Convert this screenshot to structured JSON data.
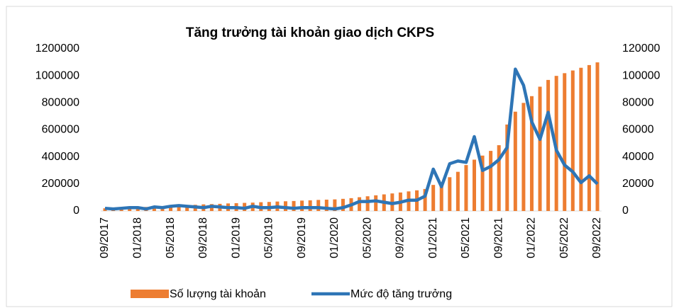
{
  "chart_data": {
    "type": "bar-line",
    "title": "Tăng trưởng tài khoản giao dịch CKPS",
    "categories": [
      "09/2017",
      null,
      null,
      null,
      "01/2018",
      null,
      null,
      null,
      "05/2018",
      null,
      null,
      null,
      "09/2018",
      null,
      null,
      null,
      "01/2019",
      null,
      null,
      null,
      "05/2019",
      null,
      null,
      null,
      "09/2019",
      null,
      null,
      null,
      "01/2020",
      null,
      null,
      null,
      "05/2020",
      null,
      null,
      null,
      "09/2020",
      null,
      null,
      null,
      "01/2021",
      null,
      null,
      null,
      "05/2021",
      null,
      null,
      null,
      "09/2021",
      null,
      null,
      null,
      "01/2022",
      null,
      null,
      null,
      "05/2022",
      null,
      null,
      null,
      "09/2022"
    ],
    "series": [
      {
        "name": "Số lượng tài khoản",
        "type": "bar",
        "color": "#ED7D31",
        "values": [
          20000,
          21000,
          23000,
          25000,
          28000,
          30000,
          32000,
          35000,
          38000,
          41000,
          44000,
          46000,
          49000,
          51000,
          53000,
          56000,
          58000,
          60000,
          62000,
          65000,
          67000,
          70000,
          72000,
          74000,
          77000,
          79000,
          82000,
          84000,
          86000,
          90000,
          95000,
          102000,
          109000,
          116000,
          123000,
          130000,
          137000,
          145000,
          153000,
          163000,
          193000,
          213000,
          250000,
          290000,
          340000,
          380000,
          410000,
          445000,
          487000,
          640000,
          735000,
          800000,
          850000,
          920000,
          970000,
          1000000,
          1020000,
          1040000,
          1060000,
          1080000,
          1100000
        ]
      },
      {
        "name": "Mức độ tăng trưởng",
        "type": "line",
        "axis": "y2",
        "color": "#2E75B6",
        "values": [
          2000,
          1500,
          2000,
          2500,
          2500,
          1500,
          3000,
          2500,
          3500,
          4000,
          3500,
          3000,
          2500,
          3500,
          3000,
          2500,
          2500,
          2000,
          3500,
          2500,
          2500,
          3000,
          2500,
          2000,
          2500,
          2500,
          2500,
          2000,
          1500,
          2500,
          4500,
          7000,
          7000,
          7500,
          6500,
          5500,
          6500,
          8000,
          8000,
          11000,
          31000,
          18000,
          35000,
          37000,
          36000,
          55000,
          30000,
          33000,
          38000,
          47000,
          105000,
          93000,
          66000,
          53000,
          73000,
          45000,
          34000,
          29000,
          21000,
          26000,
          20000
        ]
      }
    ],
    "ylim": [
      0,
      1200000
    ],
    "yticks": [
      0,
      200000,
      400000,
      600000,
      800000,
      1000000,
      1200000
    ],
    "y2lim": [
      0,
      120000
    ],
    "y2ticks": [
      0,
      20000,
      40000,
      60000,
      80000,
      100000,
      120000
    ],
    "legend": "bottom"
  }
}
